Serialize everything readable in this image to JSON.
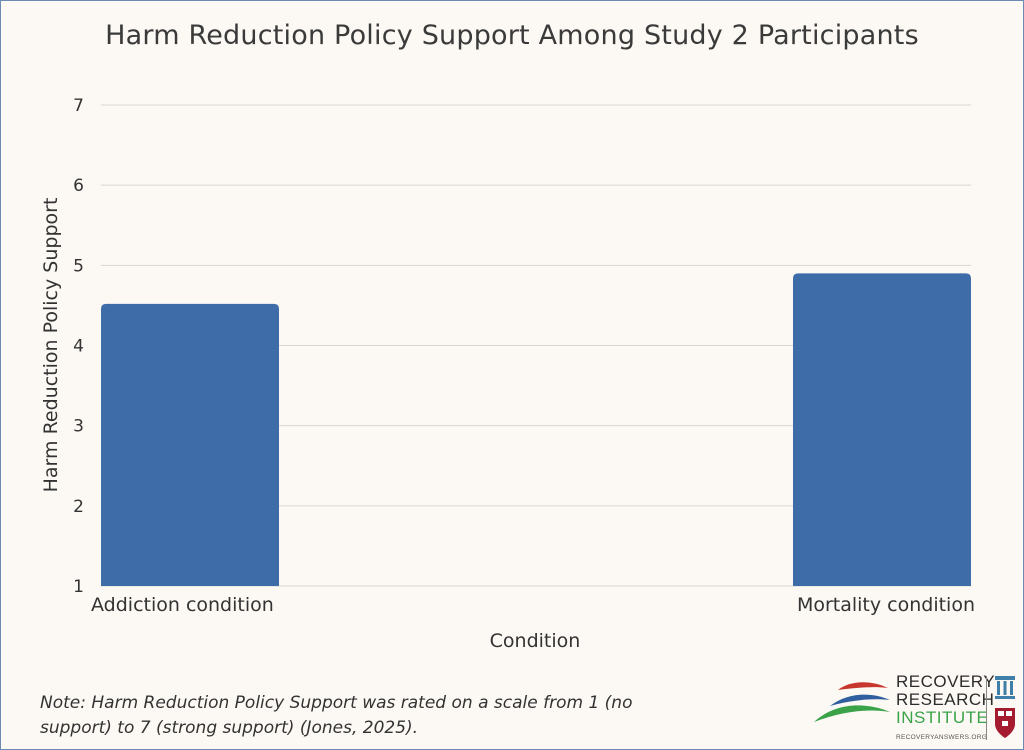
{
  "chart_data": {
    "type": "bar",
    "title": "Harm Reduction Policy Support Among Study 2 Participants",
    "categories": [
      "Addiction condition",
      "Mortality condition"
    ],
    "values": [
      4.52,
      4.9
    ],
    "xlabel": "Condition",
    "ylabel": "Harm Reduction Policy Support",
    "ylim": [
      1,
      7
    ],
    "yticks": [
      1,
      2,
      3,
      4,
      5,
      6,
      7
    ],
    "grid": true,
    "bar_color": "#3d6ca8"
  },
  "note": "Note: Harm Reduction Policy Support was rated on a scale from 1 (no support) to 7 (strong support) (Jones, 2025).",
  "logo": {
    "line1": "RECOVERY",
    "line2": "RESEARCH",
    "line3": "INSTITUTE",
    "site": "RECOVERYANSWERS.ORG"
  }
}
